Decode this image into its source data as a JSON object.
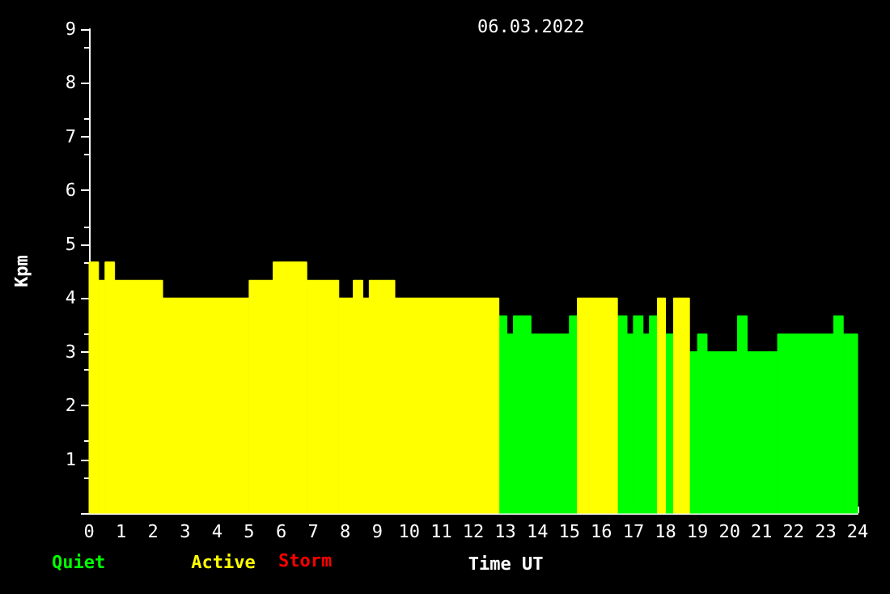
{
  "chart_data": {
    "type": "histogram",
    "title": "06.03.2022",
    "xlabel": "Time UT",
    "ylabel": "Kpm",
    "bins": [
      0,
      0.3,
      0.5,
      0.8,
      2.3,
      5,
      5.75,
      6.8,
      7.8,
      8.25,
      8.55,
      8.75,
      9.55,
      12.8,
      13.05,
      13.25,
      13.8,
      15,
      15.25,
      16.5,
      16.8,
      17,
      17.3,
      17.5,
      17.75,
      18,
      18.25,
      18.75,
      19,
      19.3,
      20.25,
      20.55,
      21.5,
      23.25,
      23.55,
      24
    ],
    "series": [
      {
        "name": "Quiet",
        "color": "#00ff00",
        "values": [
          null,
          null,
          null,
          null,
          null,
          null,
          null,
          null,
          null,
          null,
          null,
          null,
          null,
          3.67,
          3.33,
          3.67,
          3.33,
          3.67,
          null,
          3.67,
          3.33,
          3.67,
          3.33,
          3.67,
          null,
          3.33,
          null,
          3,
          3.33,
          3,
          3.67,
          3,
          3.33,
          3.67,
          3.33
        ]
      },
      {
        "name": "Active",
        "color": "#ffff00",
        "values": [
          4.67,
          4.33,
          4.67,
          4.33,
          4,
          4.33,
          4.67,
          4.33,
          4,
          4.33,
          4,
          4.33,
          4,
          null,
          null,
          null,
          null,
          null,
          4,
          null,
          null,
          null,
          null,
          null,
          4,
          null,
          4,
          null,
          null,
          null,
          null,
          null,
          null,
          null,
          null
        ]
      }
    ],
    "annotations": [
      "Storm"
    ],
    "xlim": [
      0,
      24
    ],
    "xticks": [
      0,
      1,
      2,
      3,
      4,
      5,
      6,
      7,
      8,
      9,
      10,
      11,
      12,
      13,
      14,
      15,
      16,
      17,
      18,
      19,
      20,
      21,
      22,
      23,
      24
    ],
    "ylim": [
      0,
      9
    ],
    "yticks": [
      {
        "value": 0,
        "label": null
      },
      1,
      2,
      3,
      4,
      5,
      6,
      7,
      8,
      9
    ],
    "grid": false,
    "legend": "bottom left"
  }
}
